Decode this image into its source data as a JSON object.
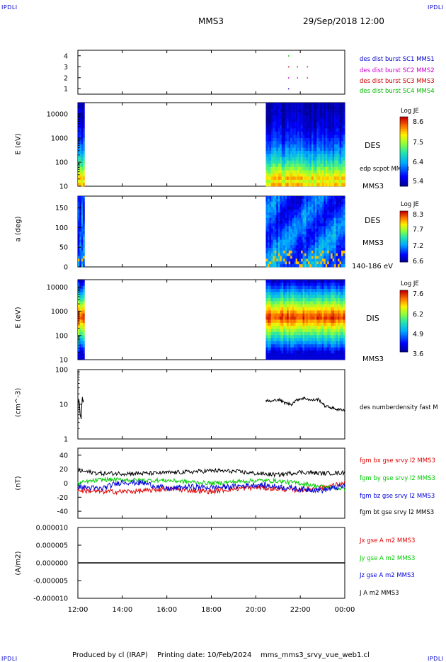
{
  "header": {
    "corner_left": "IPDLI",
    "corner_right": "IPDLI",
    "spacecraft": "MMS3",
    "datetime": "29/Sep/2018 12:00"
  },
  "footer": {
    "produced_by": "Produced by cl (IRAP)",
    "printing_date": "Printing date: 10/Feb/2024",
    "filename": "mms_mms3_srvy_vue_web1.cl",
    "corner_left": "IPDLI",
    "corner_right": "IPDLI"
  },
  "colors": {
    "mms1": "#0000cc",
    "mms2": "#cc00cc",
    "mms3": "#cc0000",
    "mms4": "#00bb00",
    "bx": "#dd0000",
    "by": "#00cc00",
    "bz": "#0000dd",
    "bt": "#000000"
  },
  "chart_data": [
    {
      "type": "scatter",
      "panel": "burst-availability",
      "yticks": [
        "1",
        "2",
        "3",
        "4"
      ],
      "ylim": [
        0.5,
        4.5
      ],
      "legend": [
        {
          "name": "des dist burst SC1 MMS1",
          "color": "#0000cc"
        },
        {
          "name": "des dist burst SC2 MMS2",
          "color": "#cc00cc"
        },
        {
          "name": "des dist burst SC3 MMS3",
          "color": "#cc0000"
        },
        {
          "name": "des dist burst SC4 MMS4",
          "color": "#00bb00"
        }
      ],
      "points": [
        {
          "t": 21.45,
          "y": 4
        },
        {
          "t": 21.45,
          "y": 3
        },
        {
          "t": 21.45,
          "y": 2
        },
        {
          "t": 21.45,
          "y": 1
        },
        {
          "t": 21.85,
          "y": 3
        },
        {
          "t": 21.85,
          "y": 2
        },
        {
          "t": 22.3,
          "y": 3
        },
        {
          "t": 22.3,
          "y": 2
        }
      ]
    },
    {
      "type": "heatmap",
      "panel": "des-energy",
      "ylabel": "E (eV)",
      "yscale": "log",
      "ylim": [
        10,
        30000
      ],
      "yticks": [
        "10",
        "100",
        "1000",
        "10000"
      ],
      "right_labels": [
        "DES",
        "edp scpot MMS3",
        "MMS3"
      ],
      "colorbar": {
        "title": "Log JE",
        "ticks": [
          "8.6",
          "7.5",
          "6.4",
          "5.4"
        ],
        "min": 5.4,
        "max": 8.6
      },
      "coverage_hours": [
        [
          12.0,
          12.3
        ],
        [
          20.45,
          24.0
        ]
      ]
    },
    {
      "type": "heatmap",
      "panel": "des-pitch-angle",
      "ylabel": "a (deg)",
      "ylim": [
        0,
        180
      ],
      "yticks": [
        "0",
        "50",
        "100",
        "150"
      ],
      "right_labels": [
        "DES",
        "MMS3",
        "140-186 eV"
      ],
      "colorbar": {
        "title": "Log JE",
        "ticks": [
          "8.3",
          "7.7",
          "7.2",
          "6.6"
        ],
        "min": 6.6,
        "max": 8.3
      },
      "coverage_hours": [
        [
          12.0,
          12.3
        ],
        [
          20.45,
          24.0
        ]
      ]
    },
    {
      "type": "heatmap",
      "panel": "dis-energy",
      "ylabel": "E (eV)",
      "yscale": "log",
      "ylim": [
        10,
        20000
      ],
      "yticks": [
        "10",
        "100",
        "1000",
        "10000"
      ],
      "right_labels": [
        "DIS",
        "MMS3"
      ],
      "colorbar": {
        "title": "Log JE",
        "ticks": [
          "7.6",
          "6.2",
          "4.9",
          "3.6"
        ],
        "min": 3.6,
        "max": 7.6
      },
      "coverage_hours": [
        [
          12.0,
          12.3
        ],
        [
          20.45,
          24.0
        ]
      ]
    },
    {
      "type": "line",
      "panel": "density",
      "ylabel": "(cm^-3)",
      "yscale": "log",
      "ylim": [
        1,
        100
      ],
      "yticks": [
        "1",
        "10",
        "100"
      ],
      "series": [
        {
          "name": "des numberdensity fast M",
          "color": "#000000",
          "x": [
            12.0,
            12.05,
            12.1,
            12.15,
            12.2,
            12.25
          ],
          "y": [
            10,
            14,
            5,
            4,
            15,
            12
          ]
        },
        {
          "name": "des numberdensity fast M",
          "color": "#000000",
          "x": [
            20.45,
            20.7,
            21.0,
            21.3,
            21.6,
            21.9,
            22.2,
            22.5,
            22.8,
            23.1,
            23.4,
            23.7,
            24.0
          ],
          "y": [
            13,
            12,
            14,
            11,
            10,
            14,
            15,
            13,
            14,
            9,
            8,
            7,
            7
          ]
        }
      ]
    },
    {
      "type": "line",
      "panel": "magnetic-field",
      "ylabel": "(nT)",
      "ylim": [
        -50,
        50
      ],
      "yticks": [
        "40",
        "20",
        "0",
        "-20",
        "-40"
      ],
      "x": [
        12,
        13,
        14,
        15,
        16,
        17,
        18,
        19,
        20,
        21,
        22,
        23,
        24
      ],
      "series": [
        {
          "name": "fgm bx gse srvy l2 MMS3",
          "color": "#dd0000",
          "values": [
            -10,
            -12,
            -12,
            -11,
            -8,
            -10,
            -12,
            -8,
            -6,
            -8,
            -10,
            -6,
            0
          ]
        },
        {
          "name": "fgm by gse srvy l2 MMS3",
          "color": "#00cc00",
          "values": [
            0,
            5,
            5,
            4,
            4,
            2,
            0,
            2,
            4,
            3,
            0,
            -5,
            -8
          ]
        },
        {
          "name": "fgm bz gse srvy l2 MMS3",
          "color": "#0000dd",
          "values": [
            -5,
            -8,
            2,
            0,
            -8,
            -5,
            -6,
            -5,
            -2,
            -5,
            -8,
            -10,
            -4
          ]
        },
        {
          "name": "fgm bt gse srvy l2 MMS3",
          "color": "#000000",
          "values": [
            18,
            14,
            14,
            14,
            15,
            16,
            18,
            17,
            14,
            12,
            16,
            14,
            15
          ]
        }
      ]
    },
    {
      "type": "line",
      "panel": "current-density",
      "ylabel": "(A/m2)",
      "ylim": [
        -1e-05,
        1e-05
      ],
      "yticks": [
        "0.000010",
        "0.000005",
        "0.000000",
        "-0.000005",
        "-0.000010"
      ],
      "series": [
        {
          "name": "Jx gse A m2 MMS3",
          "color": "#dd0000",
          "values": [
            0,
            0
          ]
        },
        {
          "name": "Jy gse A m2 MMS3",
          "color": "#00cc00",
          "values": [
            0,
            0
          ]
        },
        {
          "name": "Jz gse A m2 MMS3",
          "color": "#0000dd",
          "values": [
            0,
            0
          ]
        },
        {
          "name": "J A m2 MMS3",
          "color": "#000000",
          "values": [
            0,
            0
          ]
        }
      ],
      "x": [
        12,
        24
      ]
    }
  ],
  "xaxis": {
    "xlim_hours": [
      12,
      24
    ],
    "ticks": [
      {
        "hour": 12,
        "label": "12:00"
      },
      {
        "hour": 14,
        "label": "14:00"
      },
      {
        "hour": 16,
        "label": "16:00"
      },
      {
        "hour": 18,
        "label": "18:00"
      },
      {
        "hour": 20,
        "label": "20:00"
      },
      {
        "hour": 22,
        "label": "22:00"
      },
      {
        "hour": 24,
        "label": "00:00"
      }
    ]
  }
}
